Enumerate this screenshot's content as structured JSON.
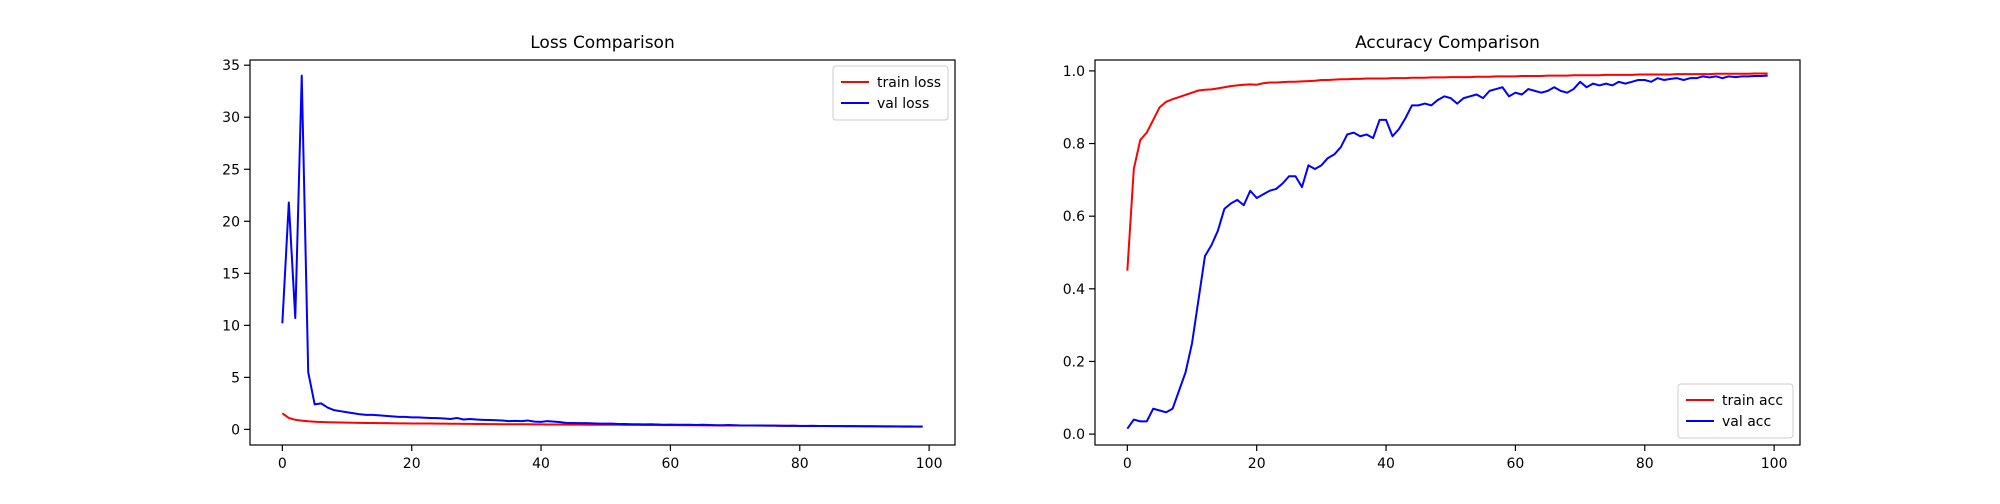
{
  "chart_data": [
    {
      "type": "line",
      "title": "Loss Comparison",
      "xlabel": "",
      "ylabel": "",
      "xlim": [
        -5,
        104
      ],
      "ylim": [
        -1.5,
        35.5
      ],
      "xticks": [
        0,
        20,
        40,
        60,
        80,
        100
      ],
      "yticks": [
        0,
        5,
        10,
        15,
        20,
        25,
        30,
        35
      ],
      "grid": false,
      "legend_position": "top-right",
      "x": [
        0,
        1,
        2,
        3,
        4,
        5,
        6,
        7,
        8,
        9,
        10,
        11,
        12,
        13,
        14,
        15,
        16,
        17,
        18,
        19,
        20,
        21,
        22,
        23,
        24,
        25,
        26,
        27,
        28,
        29,
        30,
        31,
        32,
        33,
        34,
        35,
        36,
        37,
        38,
        39,
        40,
        41,
        42,
        43,
        44,
        45,
        46,
        47,
        48,
        49,
        50,
        51,
        52,
        53,
        54,
        55,
        56,
        57,
        58,
        59,
        60,
        61,
        62,
        63,
        64,
        65,
        66,
        67,
        68,
        69,
        70,
        71,
        72,
        73,
        74,
        75,
        76,
        77,
        78,
        79,
        80,
        81,
        82,
        83,
        84,
        85,
        86,
        87,
        88,
        89,
        90,
        91,
        92,
        93,
        94,
        95,
        96,
        97,
        98,
        99
      ],
      "series": [
        {
          "name": "train loss",
          "color": "#ff0000",
          "values": [
            1.55,
            1.1,
            0.92,
            0.84,
            0.78,
            0.74,
            0.71,
            0.69,
            0.67,
            0.66,
            0.65,
            0.64,
            0.63,
            0.62,
            0.61,
            0.6,
            0.6,
            0.59,
            0.58,
            0.58,
            0.57,
            0.57,
            0.56,
            0.56,
            0.55,
            0.55,
            0.54,
            0.54,
            0.53,
            0.53,
            0.52,
            0.52,
            0.51,
            0.51,
            0.5,
            0.5,
            0.49,
            0.49,
            0.49,
            0.48,
            0.48,
            0.47,
            0.47,
            0.47,
            0.46,
            0.46,
            0.46,
            0.45,
            0.45,
            0.45,
            0.44,
            0.44,
            0.44,
            0.43,
            0.43,
            0.43,
            0.42,
            0.42,
            0.42,
            0.41,
            0.41,
            0.41,
            0.4,
            0.4,
            0.4,
            0.39,
            0.39,
            0.39,
            0.38,
            0.38,
            0.38,
            0.37,
            0.37,
            0.37,
            0.36,
            0.36,
            0.36,
            0.35,
            0.35,
            0.35,
            0.34,
            0.34,
            0.34,
            0.33,
            0.33,
            0.33,
            0.32,
            0.32,
            0.32,
            0.31,
            0.31,
            0.31,
            0.3,
            0.3,
            0.3,
            0.29,
            0.29,
            0.29,
            0.28,
            0.28
          ]
        },
        {
          "name": "val loss",
          "color": "#0000ff",
          "values": [
            10.2,
            21.8,
            10.7,
            34.0,
            5.5,
            2.4,
            2.5,
            2.1,
            1.85,
            1.75,
            1.65,
            1.55,
            1.45,
            1.4,
            1.4,
            1.35,
            1.3,
            1.25,
            1.2,
            1.2,
            1.15,
            1.15,
            1.12,
            1.1,
            1.08,
            1.05,
            1.0,
            1.1,
            0.95,
            1.0,
            0.95,
            0.92,
            0.9,
            0.88,
            0.85,
            0.8,
            0.82,
            0.8,
            0.85,
            0.75,
            0.72,
            0.8,
            0.75,
            0.7,
            0.62,
            0.62,
            0.6,
            0.6,
            0.58,
            0.55,
            0.55,
            0.55,
            0.52,
            0.52,
            0.5,
            0.5,
            0.48,
            0.5,
            0.47,
            0.45,
            0.46,
            0.45,
            0.44,
            0.45,
            0.42,
            0.44,
            0.42,
            0.4,
            0.4,
            0.42,
            0.4,
            0.38,
            0.38,
            0.37,
            0.38,
            0.36,
            0.36,
            0.35,
            0.34,
            0.35,
            0.33,
            0.33,
            0.34,
            0.32,
            0.32,
            0.31,
            0.31,
            0.3,
            0.3,
            0.3,
            0.29,
            0.29,
            0.29,
            0.28,
            0.28,
            0.28,
            0.27,
            0.27,
            0.27,
            0.27
          ]
        }
      ]
    },
    {
      "type": "line",
      "title": "Accuracy Comparison",
      "xlabel": "",
      "ylabel": "",
      "xlim": [
        -5,
        104
      ],
      "ylim": [
        -0.03,
        1.03
      ],
      "xticks": [
        0,
        20,
        40,
        60,
        80,
        100
      ],
      "yticks": [
        0.0,
        0.2,
        0.4,
        0.6,
        0.8,
        1.0
      ],
      "grid": false,
      "legend_position": "bottom-right",
      "x": [
        0,
        1,
        2,
        3,
        4,
        5,
        6,
        7,
        8,
        9,
        10,
        11,
        12,
        13,
        14,
        15,
        16,
        17,
        18,
        19,
        20,
        21,
        22,
        23,
        24,
        25,
        26,
        27,
        28,
        29,
        30,
        31,
        32,
        33,
        34,
        35,
        36,
        37,
        38,
        39,
        40,
        41,
        42,
        43,
        44,
        45,
        46,
        47,
        48,
        49,
        50,
        51,
        52,
        53,
        54,
        55,
        56,
        57,
        58,
        59,
        60,
        61,
        62,
        63,
        64,
        65,
        66,
        67,
        68,
        69,
        70,
        71,
        72,
        73,
        74,
        75,
        76,
        77,
        78,
        79,
        80,
        81,
        82,
        83,
        84,
        85,
        86,
        87,
        88,
        89,
        90,
        91,
        92,
        93,
        94,
        95,
        96,
        97,
        98,
        99
      ],
      "series": [
        {
          "name": "train acc",
          "color": "#ff0000",
          "values": [
            0.45,
            0.73,
            0.81,
            0.83,
            0.865,
            0.9,
            0.915,
            0.922,
            0.928,
            0.934,
            0.94,
            0.946,
            0.948,
            0.949,
            0.952,
            0.955,
            0.958,
            0.96,
            0.962,
            0.963,
            0.962,
            0.966,
            0.968,
            0.968,
            0.969,
            0.97,
            0.97,
            0.971,
            0.972,
            0.973,
            0.975,
            0.975,
            0.976,
            0.977,
            0.977,
            0.978,
            0.978,
            0.979,
            0.979,
            0.979,
            0.979,
            0.98,
            0.98,
            0.98,
            0.981,
            0.981,
            0.981,
            0.982,
            0.982,
            0.982,
            0.983,
            0.983,
            0.983,
            0.983,
            0.984,
            0.984,
            0.984,
            0.985,
            0.985,
            0.985,
            0.985,
            0.986,
            0.986,
            0.986,
            0.986,
            0.987,
            0.987,
            0.987,
            0.987,
            0.988,
            0.988,
            0.988,
            0.988,
            0.988,
            0.989,
            0.989,
            0.989,
            0.989,
            0.989,
            0.99,
            0.99,
            0.99,
            0.99,
            0.99,
            0.99,
            0.991,
            0.991,
            0.991,
            0.991,
            0.991,
            0.991,
            0.992,
            0.992,
            0.992,
            0.992,
            0.992,
            0.992,
            0.993,
            0.993,
            0.993
          ]
        },
        {
          "name": "val acc",
          "color": "#0000ff",
          "values": [
            0.015,
            0.04,
            0.035,
            0.035,
            0.07,
            0.065,
            0.06,
            0.07,
            0.12,
            0.17,
            0.25,
            0.37,
            0.49,
            0.52,
            0.56,
            0.62,
            0.635,
            0.645,
            0.63,
            0.67,
            0.65,
            0.66,
            0.67,
            0.675,
            0.69,
            0.71,
            0.71,
            0.68,
            0.74,
            0.73,
            0.74,
            0.76,
            0.77,
            0.79,
            0.825,
            0.83,
            0.82,
            0.825,
            0.815,
            0.865,
            0.865,
            0.82,
            0.84,
            0.87,
            0.905,
            0.905,
            0.91,
            0.905,
            0.92,
            0.93,
            0.925,
            0.91,
            0.925,
            0.93,
            0.935,
            0.925,
            0.945,
            0.95,
            0.955,
            0.93,
            0.94,
            0.935,
            0.95,
            0.945,
            0.94,
            0.945,
            0.955,
            0.945,
            0.94,
            0.95,
            0.97,
            0.955,
            0.965,
            0.96,
            0.965,
            0.96,
            0.97,
            0.965,
            0.97,
            0.975,
            0.975,
            0.97,
            0.98,
            0.975,
            0.978,
            0.98,
            0.975,
            0.98,
            0.98,
            0.985,
            0.982,
            0.985,
            0.98,
            0.985,
            0.983,
            0.985,
            0.985,
            0.986,
            0.986,
            0.987
          ]
        }
      ]
    }
  ]
}
